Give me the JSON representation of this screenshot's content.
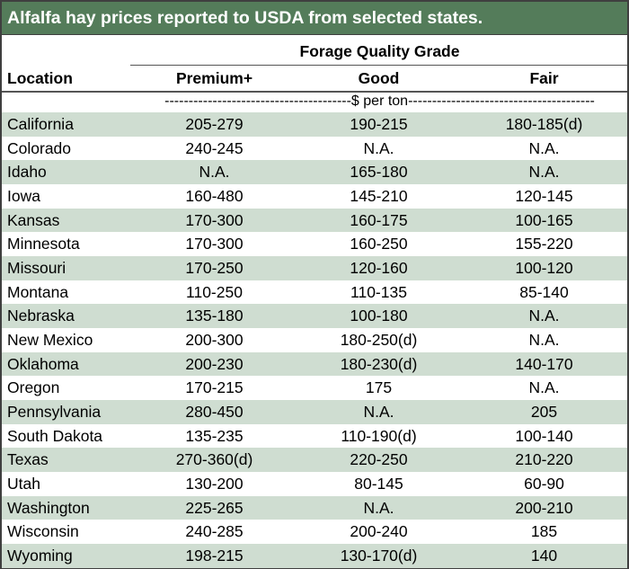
{
  "title": "Alfalfa hay prices reported to USDA from selected states.",
  "header": {
    "location": "Location",
    "group": "Forage Quality Grade",
    "columns": [
      "Premium+",
      "Good",
      "Fair"
    ]
  },
  "units": "---------------------------------------$ per ton---------------------------------------",
  "rows": [
    {
      "location": "California",
      "premium": "205-279",
      "good": "190-215",
      "fair": "180-185(d)"
    },
    {
      "location": "Colorado",
      "premium": "240-245",
      "good": "N.A.",
      "fair": "N.A."
    },
    {
      "location": "Idaho",
      "premium": "N.A.",
      "good": "165-180",
      "fair": "N.A."
    },
    {
      "location": "Iowa",
      "premium": "160-480",
      "good": "145-210",
      "fair": "120-145"
    },
    {
      "location": "Kansas",
      "premium": "170-300",
      "good": "160-175",
      "fair": "100-165"
    },
    {
      "location": "Minnesota",
      "premium": "170-300",
      "good": "160-250",
      "fair": "155-220"
    },
    {
      "location": "Missouri",
      "premium": "170-250",
      "good": "120-160",
      "fair": "100-120"
    },
    {
      "location": "Montana",
      "premium": "110-250",
      "good": "110-135",
      "fair": "85-140"
    },
    {
      "location": "Nebraska",
      "premium": "135-180",
      "good": "100-180",
      "fair": "N.A."
    },
    {
      "location": "New Mexico",
      "premium": "200-300",
      "good": "180-250(d)",
      "fair": "N.A."
    },
    {
      "location": "Oklahoma",
      "premium": "200-230",
      "good": "180-230(d)",
      "fair": "140-170"
    },
    {
      "location": "Oregon",
      "premium": "170-215",
      "good": "175",
      "fair": "N.A."
    },
    {
      "location": "Pennsylvania",
      "premium": "280-450",
      "good": "N.A.",
      "fair": "205"
    },
    {
      "location": "South Dakota",
      "premium": "135-235",
      "good": "110-190(d)",
      "fair": "100-140"
    },
    {
      "location": "Texas",
      "premium": "270-360(d)",
      "good": "220-250",
      "fair": "210-220"
    },
    {
      "location": "Utah",
      "premium": "130-200",
      "good": "80-145",
      "fair": "60-90"
    },
    {
      "location": "Washington",
      "premium": "225-265",
      "good": "N.A.",
      "fair": "200-210"
    },
    {
      "location": "Wisconsin",
      "premium": "240-285",
      "good": "200-240",
      "fair": "185"
    },
    {
      "location": "Wyoming",
      "premium": "198-215",
      "good": "130-170(d)",
      "fair": "140"
    }
  ]
}
